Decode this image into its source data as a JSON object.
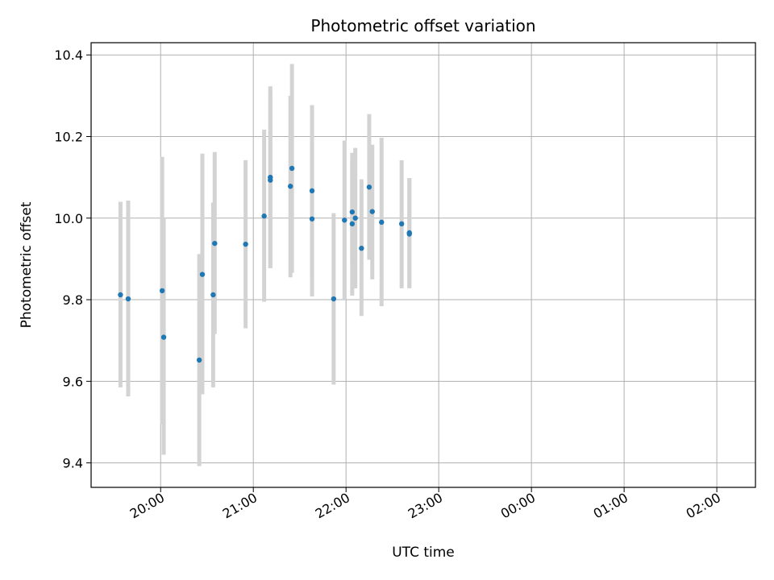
{
  "chart_data": {
    "type": "scatter",
    "title": "Photometric offset variation",
    "xlabel": "UTC time",
    "ylabel": "Photometric offset",
    "x_ticks": [
      "20:00",
      "21:00",
      "22:00",
      "23:00",
      "00:00",
      "01:00",
      "02:00"
    ],
    "y_ticks": [
      "9.4",
      "9.6",
      "9.8",
      "10.0",
      "10.2",
      "10.4"
    ],
    "grid": true,
    "marker_color": "#1f77b4",
    "errorbar_color": "#d3d3d3",
    "points": [
      {
        "time": "19:34",
        "y": 9.812,
        "low": 9.585,
        "high": 10.04
      },
      {
        "time": "19:39",
        "y": 9.802,
        "low": 9.563,
        "high": 10.043
      },
      {
        "time": "20:01",
        "y": 9.822,
        "low": 9.495,
        "high": 10.15
      },
      {
        "time": "20:02",
        "y": 9.708,
        "low": 9.42,
        "high": 10.0
      },
      {
        "time": "20:25",
        "y": 9.652,
        "low": 9.392,
        "high": 9.912
      },
      {
        "time": "20:27",
        "y": 9.862,
        "low": 9.568,
        "high": 10.158
      },
      {
        "time": "20:34",
        "y": 9.812,
        "low": 9.585,
        "high": 10.038
      },
      {
        "time": "20:35",
        "y": 9.938,
        "low": 9.716,
        "high": 10.162
      },
      {
        "time": "20:55",
        "y": 9.936,
        "low": 9.73,
        "high": 10.142
      },
      {
        "time": "21:07",
        "y": 10.005,
        "low": 9.795,
        "high": 10.217
      },
      {
        "time": "21:11",
        "y": 10.1,
        "low": 9.878,
        "high": 10.323
      },
      {
        "time": "21:11",
        "y": 10.093,
        "low": 9.877,
        "high": 10.31
      },
      {
        "time": "21:24",
        "y": 10.078,
        "low": 9.855,
        "high": 10.3
      },
      {
        "time": "21:25",
        "y": 10.122,
        "low": 9.866,
        "high": 10.378
      },
      {
        "time": "21:38",
        "y": 10.067,
        "low": 9.855,
        "high": 10.277
      },
      {
        "time": "21:38",
        "y": 9.998,
        "low": 9.808,
        "high": 10.19
      },
      {
        "time": "21:52",
        "y": 9.802,
        "low": 9.592,
        "high": 10.012
      },
      {
        "time": "21:59",
        "y": 9.995,
        "low": 9.8,
        "high": 10.19
      },
      {
        "time": "22:04",
        "y": 9.986,
        "low": 9.81,
        "high": 10.16
      },
      {
        "time": "22:04",
        "y": 10.015,
        "low": 9.89,
        "high": 10.142
      },
      {
        "time": "22:06",
        "y": 10.0,
        "low": 9.828,
        "high": 10.172
      },
      {
        "time": "22:10",
        "y": 9.926,
        "low": 9.76,
        "high": 10.095
      },
      {
        "time": "22:15",
        "y": 10.076,
        "low": 9.898,
        "high": 10.255
      },
      {
        "time": "22:17",
        "y": 10.016,
        "low": 9.85,
        "high": 10.18
      },
      {
        "time": "22:23",
        "y": 9.99,
        "low": 9.784,
        "high": 10.197
      },
      {
        "time": "22:36",
        "y": 9.986,
        "low": 9.828,
        "high": 10.142
      },
      {
        "time": "22:41",
        "y": 9.961,
        "low": 9.828,
        "high": 10.098
      },
      {
        "time": "22:41",
        "y": 9.964,
        "low": 9.83,
        "high": 10.098
      }
    ]
  }
}
